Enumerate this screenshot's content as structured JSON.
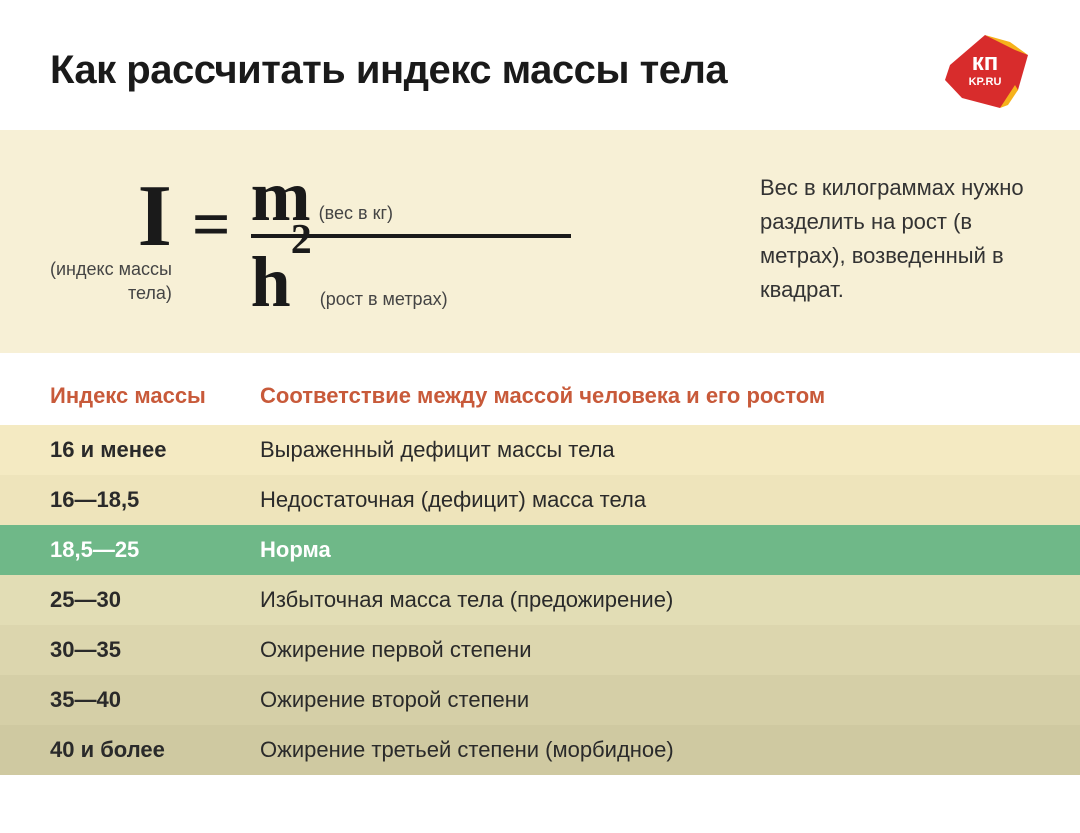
{
  "title": "Как рассчитать индекс массы тела",
  "logo": {
    "text_top": "кп",
    "text_bottom": "KP.RU",
    "main_color": "#d82c2c",
    "accent_color": "#f6b21b"
  },
  "formula_block": {
    "background": "#f7f0d6",
    "I": {
      "symbol": "I",
      "label_line1": "(индекс массы",
      "label_line2": "тела)"
    },
    "equals": "=",
    "numerator": {
      "symbol": "m",
      "label": "(вес в кг)"
    },
    "denominator": {
      "symbol": "h",
      "exponent": "2",
      "label": "(рост в метрах)"
    },
    "explanation": "Вес в килограммах нужно разделить на рост (в метрах), возведенный в квадрат."
  },
  "table": {
    "header_color": "#c85a3a",
    "col1_header": "Индекс массы",
    "col2_header": "Соответствие между массой человека и его ростом",
    "rows": [
      {
        "index": "16 и менее",
        "desc": "Выраженный дефицит массы тела",
        "bg": "#f4eac2",
        "highlight": false
      },
      {
        "index": "16—18,5",
        "desc": "Недостаточная (дефицит) масса тела",
        "bg": "#eee4bb",
        "highlight": false
      },
      {
        "index": "18,5—25",
        "desc": "Норма",
        "bg": "#6fb888",
        "highlight": true
      },
      {
        "index": "25—30",
        "desc": "Избыточная масса тела (предожирение)",
        "bg": "#e2ddb5",
        "highlight": false
      },
      {
        "index": "30—35",
        "desc": "Ожирение первой степени",
        "bg": "#dcd6ae",
        "highlight": false
      },
      {
        "index": "35—40",
        "desc": "Ожирение второй степени",
        "bg": "#d5cfa7",
        "highlight": false
      },
      {
        "index": "40 и более",
        "desc": "Ожирение третьей степени (морбидное)",
        "bg": "#cfc9a1",
        "highlight": false
      }
    ]
  }
}
